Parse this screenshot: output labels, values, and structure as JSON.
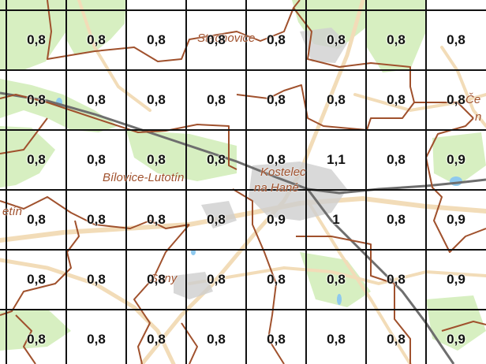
{
  "colors": {
    "background": "#ffffff",
    "forest": "#d7efc1",
    "road": "#f2dcb8",
    "boundary": "#a0512d",
    "grid": "#111111",
    "label": "#a0512d",
    "water": "#8ec9ee",
    "railway": "#6e6e6e",
    "built_up": "#cfcfcf"
  },
  "grid": {
    "columns": 8,
    "rows": 6,
    "values": [
      [
        "0,8",
        "0,8",
        "0,8",
        "0,8",
        "0,8",
        "0,8",
        "0,8",
        "0,8"
      ],
      [
        "0,8",
        "0,8",
        "0,8",
        "0,8",
        "0,8",
        "0,8",
        "0,8",
        "0,8"
      ],
      [
        "0,8",
        "0,8",
        "0,8",
        "0,8",
        "0,8",
        "1,1",
        "0,8",
        "0,9"
      ],
      [
        "0,8",
        "0,8",
        "0,8",
        "0,8",
        "0,9",
        "1",
        "0,8",
        "0,9"
      ],
      [
        "0,8",
        "0,8",
        "0,8",
        "0,8",
        "0,8",
        "0,8",
        "0,8",
        "0,9"
      ],
      [
        "0,8",
        "0,8",
        "0,8",
        "0,8",
        "0,8",
        "0,8",
        "0,8",
        "0,9"
      ]
    ]
  },
  "place_labels": [
    {
      "name": "place-label-stachovice",
      "text": "Stachovice"
    },
    {
      "name": "place-label-bilovice-lutotin",
      "text": "Bílovice-Lutotín"
    },
    {
      "name": "place-label-kostelec",
      "text": "Kostelec"
    },
    {
      "name": "place-label-na-hane",
      "text": "na Hané"
    },
    {
      "name": "place-label-cechy",
      "text": "Če"
    },
    {
      "name": "place-label-cechy-2",
      "text": "n"
    },
    {
      "name": "place-label-otin",
      "text": "etín"
    },
    {
      "name": "place-label-stany",
      "text": "Sany"
    }
  ]
}
